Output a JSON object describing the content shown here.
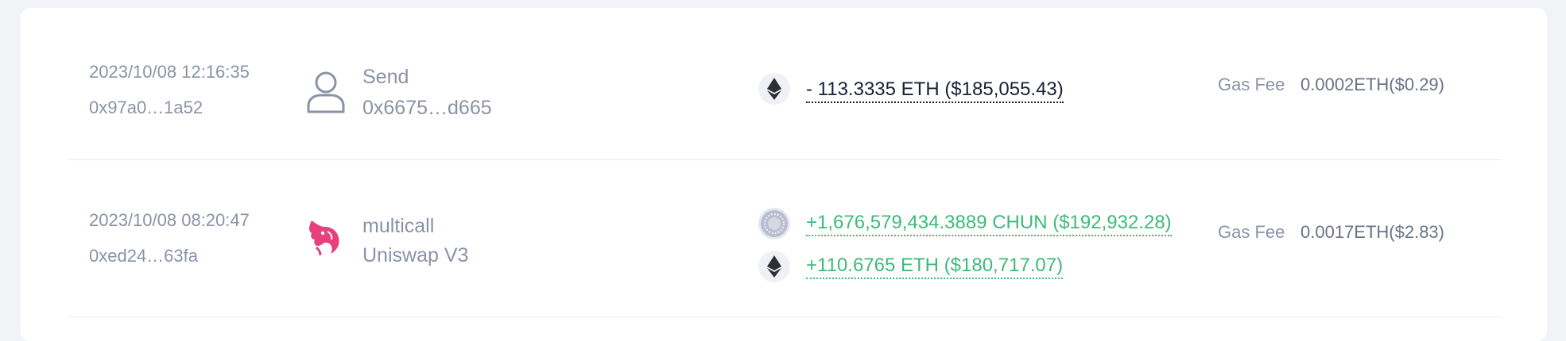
{
  "transactions": [
    {
      "time": "2023/10/08 12:16:35",
      "hash": "0x97a0…1a52",
      "icon": "user-icon",
      "method": "Send",
      "target": "0x6675…d665",
      "amounts": [
        {
          "token_icon": "eth-icon",
          "text": "- 113.3335 ETH ($185,055.43)",
          "direction": "out",
          "color": "#1a1f36"
        }
      ],
      "gas_label": "Gas Fee",
      "gas_value": "0.0002ETH($0.29)"
    },
    {
      "time": "2023/10/08 08:20:47",
      "hash": "0xed24…63fa",
      "icon": "uniswap-unicorn-icon",
      "method": "multicall",
      "target": "Uniswap V3",
      "amounts": [
        {
          "token_icon": "chun-token-icon",
          "text": "+1,676,579,434.3889 CHUN ($192,932.28)",
          "direction": "in",
          "color": "#3dbb7a"
        },
        {
          "token_icon": "eth-icon",
          "text": "+110.6765 ETH ($180,717.07)",
          "direction": "in",
          "color": "#3dbb7a"
        }
      ],
      "gas_label": "Gas Fee",
      "gas_value": "0.0017ETH($2.83)"
    }
  ],
  "colors": {
    "background": "#f1f3f7",
    "card": "#ffffff",
    "muted_text": "#8a93a6",
    "positive": "#3dbb7a",
    "negative": "#1a1f36",
    "brand_uniswap": "#e8407a"
  }
}
